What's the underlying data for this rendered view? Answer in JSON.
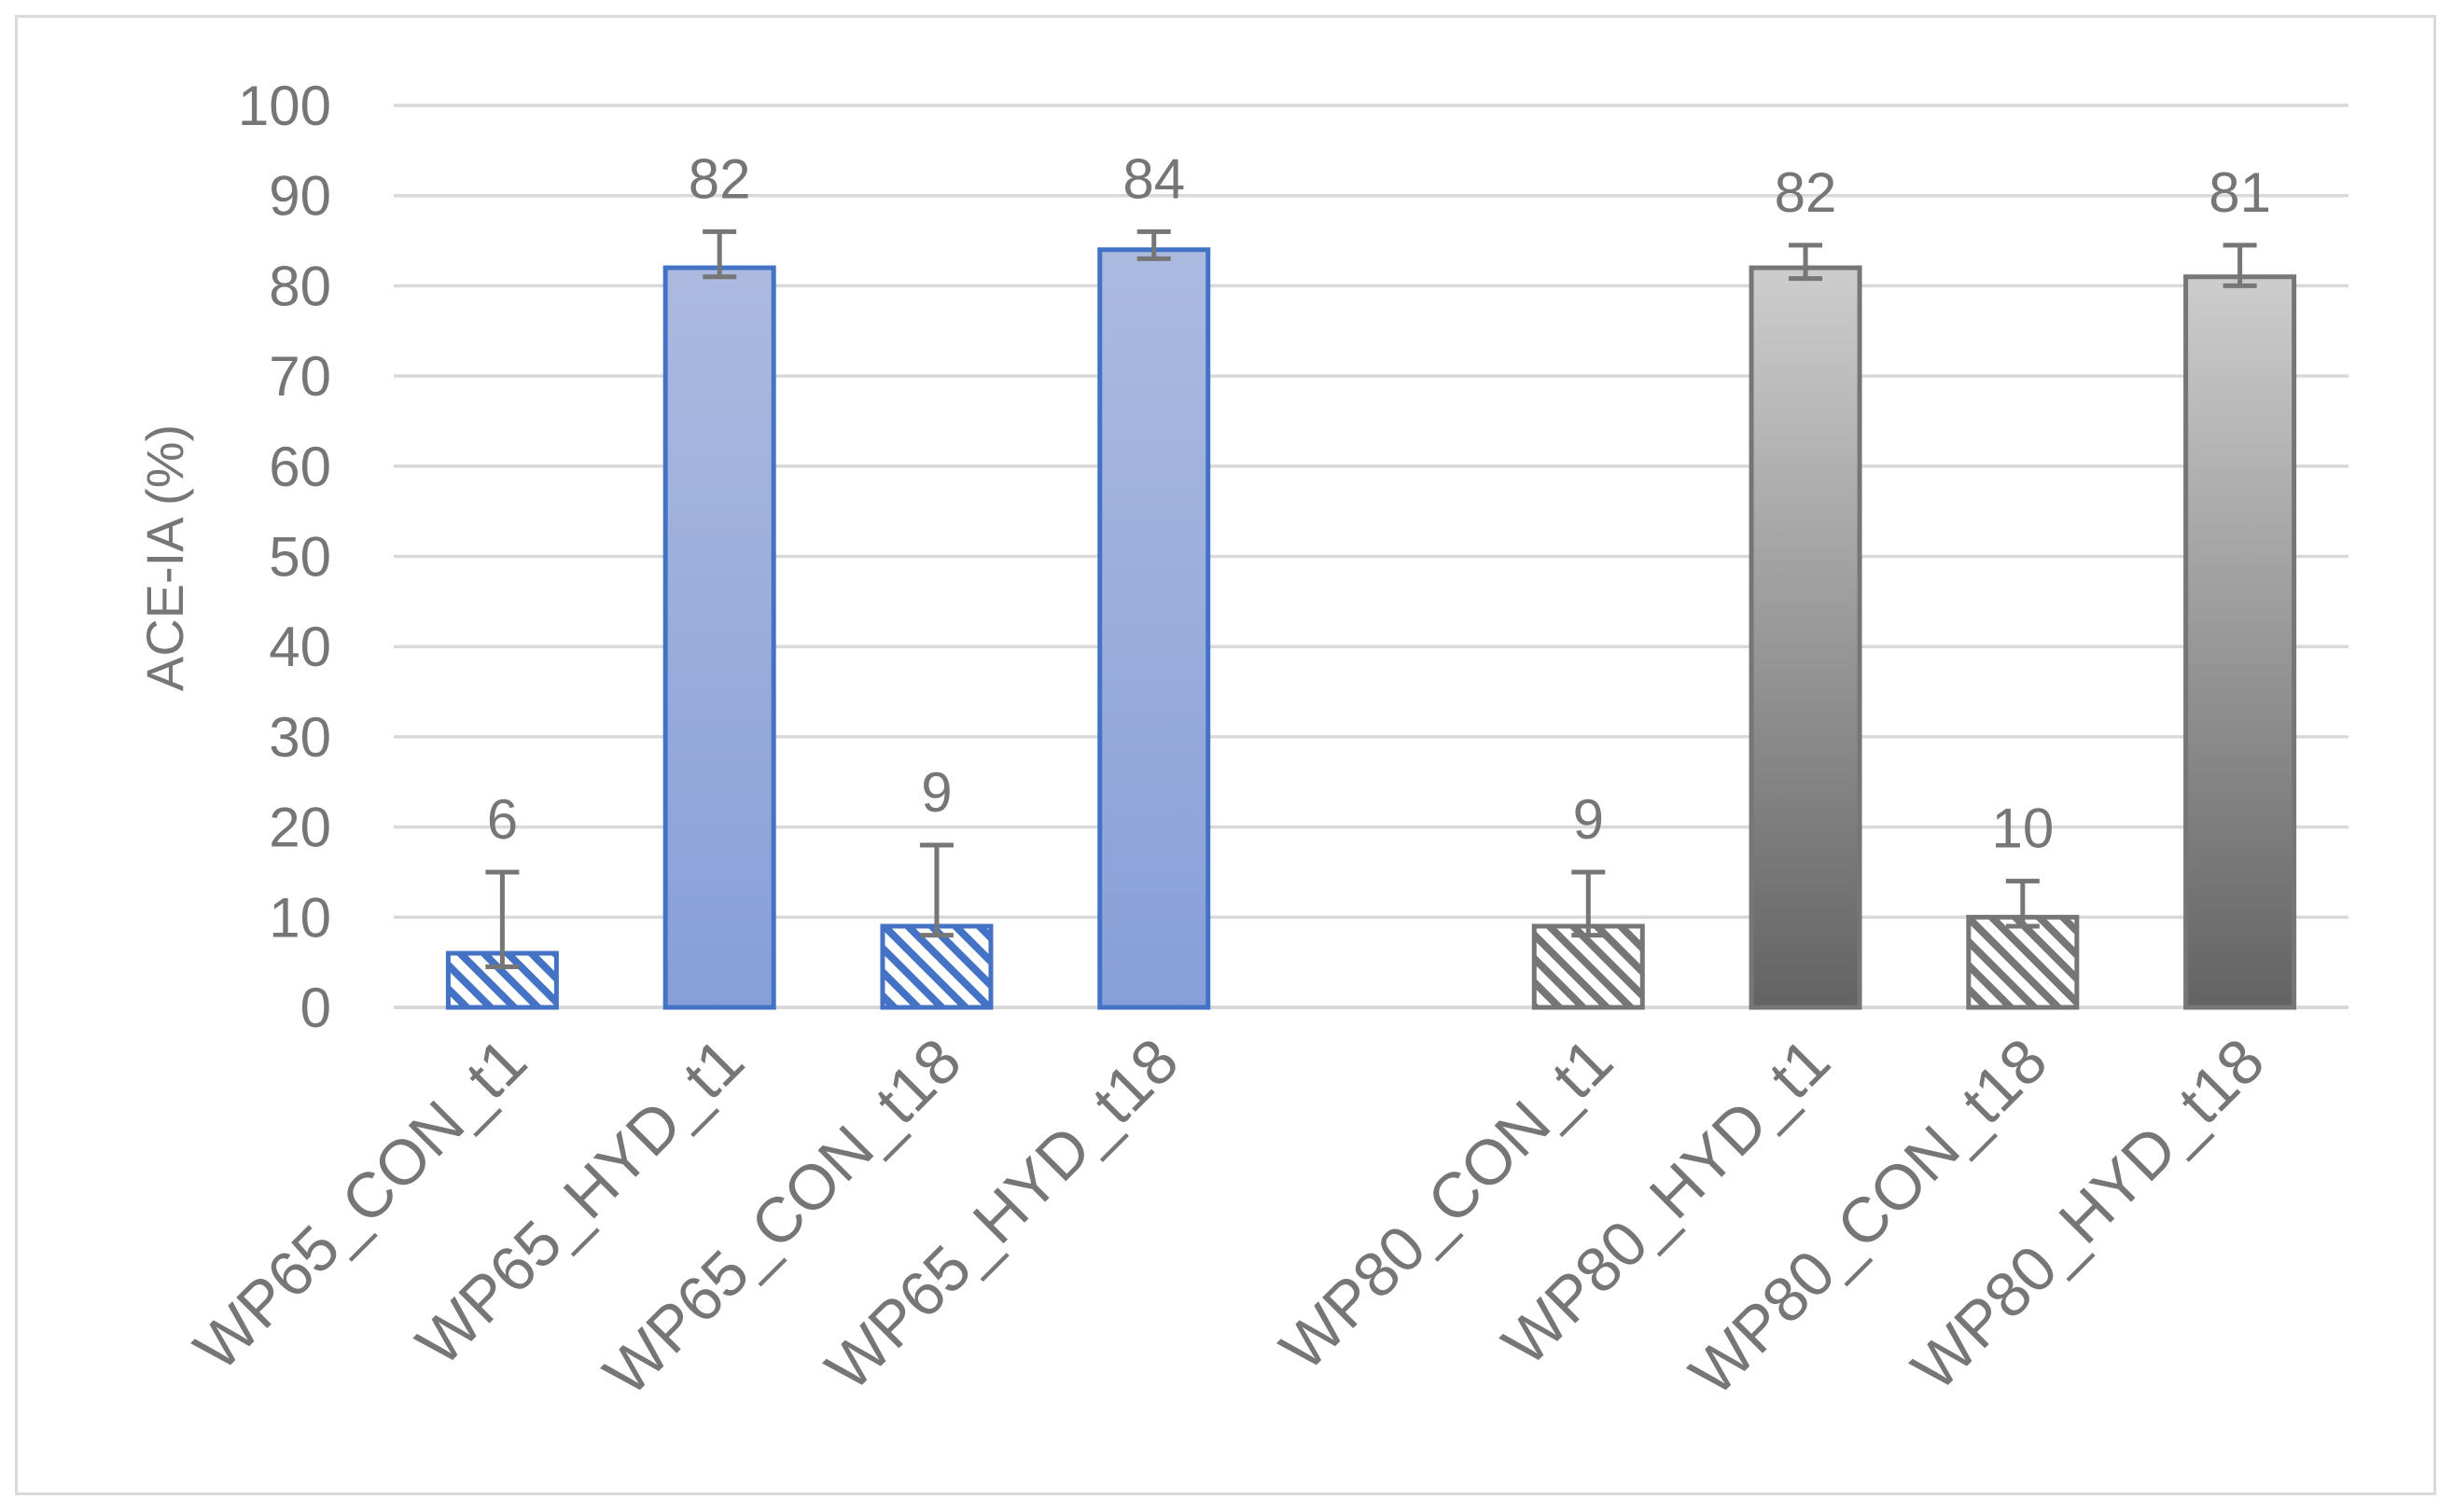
{
  "chart_data": {
    "type": "bar",
    "ylabel": "ACE-IA (%)",
    "xlabel": "",
    "ylim": [
      0,
      100
    ],
    "yticks": [
      0,
      10,
      20,
      30,
      40,
      50,
      60,
      70,
      80,
      90,
      100
    ],
    "grid": true,
    "categories": [
      "WP65_CON_t1",
      "WP65_HYD_t1",
      "WP65_CON_t18",
      "WP65_HYD_t18",
      "",
      "WP80_CON_t1",
      "WP80_HYD_t1",
      "WP80_CON_t18",
      "WP80_HYD_t18"
    ],
    "bars": [
      {
        "category": "WP65_CON_t1",
        "value": 6,
        "label": "6",
        "error_plus": 9,
        "error_minus": 1.5,
        "style": "hatch",
        "color": "#4472c4"
      },
      {
        "category": "WP65_HYD_t1",
        "value": 82,
        "label": "82",
        "error_plus": 4,
        "error_minus": 1,
        "style": "solid",
        "color": "#4472c4"
      },
      {
        "category": "WP65_CON_t18",
        "value": 9,
        "label": "9",
        "error_plus": 9,
        "error_minus": 1,
        "style": "hatch",
        "color": "#4472c4"
      },
      {
        "category": "WP65_HYD_t18",
        "value": 84,
        "label": "84",
        "error_plus": 2,
        "error_minus": 1,
        "style": "solid",
        "color": "#4472c4"
      },
      {
        "category": "",
        "value": null,
        "label": "",
        "style": "none"
      },
      {
        "category": "WP80_CON_t1",
        "value": 9,
        "label": "9",
        "error_plus": 6,
        "error_minus": 1,
        "style": "hatch",
        "color": "#767676"
      },
      {
        "category": "WP80_HYD_t1",
        "value": 82,
        "label": "82",
        "error_plus": 2.5,
        "error_minus": 1.2,
        "style": "solid",
        "color": "#767676"
      },
      {
        "category": "WP80_CON_t18",
        "value": 10,
        "label": "10",
        "error_plus": 4,
        "error_minus": 1,
        "style": "hatch",
        "color": "#767676"
      },
      {
        "category": "WP80_HYD_t18",
        "value": 81,
        "label": "81",
        "error_plus": 3.5,
        "error_minus": 1,
        "style": "solid",
        "color": "#767676"
      }
    ]
  }
}
